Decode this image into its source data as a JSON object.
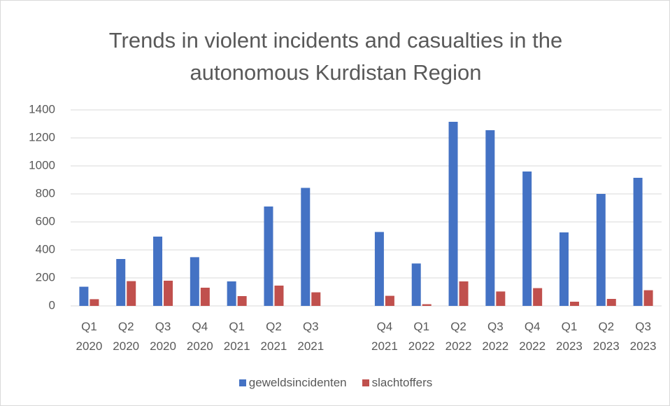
{
  "chart_data": {
    "type": "bar",
    "title": "Trends in violent incidents and casualties in the autonomous Kurdistan Region",
    "categories": [
      "Q1 2020",
      "Q2 2020",
      "Q3 2020",
      "Q4 2020",
      "Q1 2021",
      "Q2 2021",
      "Q3 2021",
      null,
      "Q4 2021",
      "Q1 2022",
      "Q2 2022",
      "Q3 2022",
      "Q4 2022",
      "Q1 2023",
      "Q2 2023",
      "Q3 2023"
    ],
    "series": [
      {
        "name": "geweldsincidenten",
        "color": "#4472c4",
        "values": [
          137,
          335,
          495,
          348,
          175,
          710,
          843,
          null,
          528,
          303,
          1315,
          1255,
          960,
          525,
          800,
          915
        ]
      },
      {
        "name": "slachtoffers",
        "color": "#c0504d",
        "values": [
          48,
          177,
          180,
          130,
          70,
          145,
          97,
          null,
          72,
          12,
          175,
          103,
          127,
          30,
          50,
          112
        ]
      }
    ],
    "ylim": [
      0,
      1400
    ],
    "yticks": [
      0,
      200,
      400,
      600,
      800,
      1000,
      1200,
      1400
    ],
    "grid": true,
    "legend": "bottom"
  }
}
